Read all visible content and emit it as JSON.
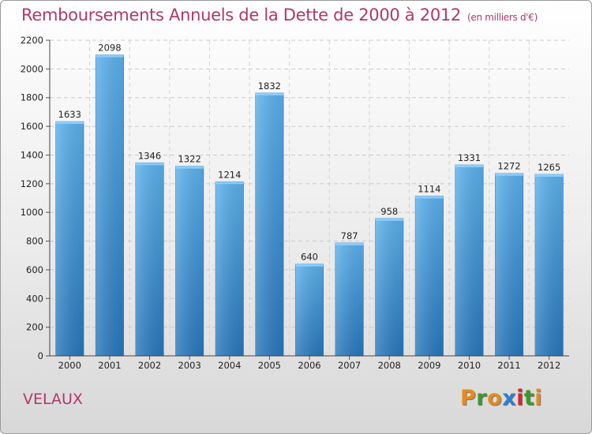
{
  "header": {
    "title": "Remboursements Annuels de la Dette de 2000 à 2012",
    "unit": "(en milliers d'€)"
  },
  "footer": {
    "city": "VELAUX",
    "brand": "Proxiti",
    "brand_colors": [
      "#e8891a",
      "#3a9a2a",
      "#e8891a",
      "#2f7fd0",
      "#d6262a",
      "#3a9a2a",
      "#e8891a"
    ]
  },
  "chart_data": {
    "type": "bar",
    "title": "Remboursements Annuels de la Dette de 2000 à 2012",
    "xlabel": "",
    "ylabel": "",
    "categories": [
      "2000",
      "2001",
      "2002",
      "2003",
      "2004",
      "2005",
      "2006",
      "2007",
      "2008",
      "2009",
      "2010",
      "2011",
      "2012"
    ],
    "values": [
      1633,
      2098,
      1346,
      1322,
      1214,
      1832,
      640,
      787,
      958,
      1114,
      1331,
      1272,
      1265
    ],
    "ylim": [
      0,
      2200
    ],
    "yticks": [
      0,
      200,
      400,
      600,
      800,
      1000,
      1200,
      1400,
      1600,
      1800,
      2000,
      2200
    ],
    "grid": true,
    "bar_color": "#4a9fe0"
  }
}
